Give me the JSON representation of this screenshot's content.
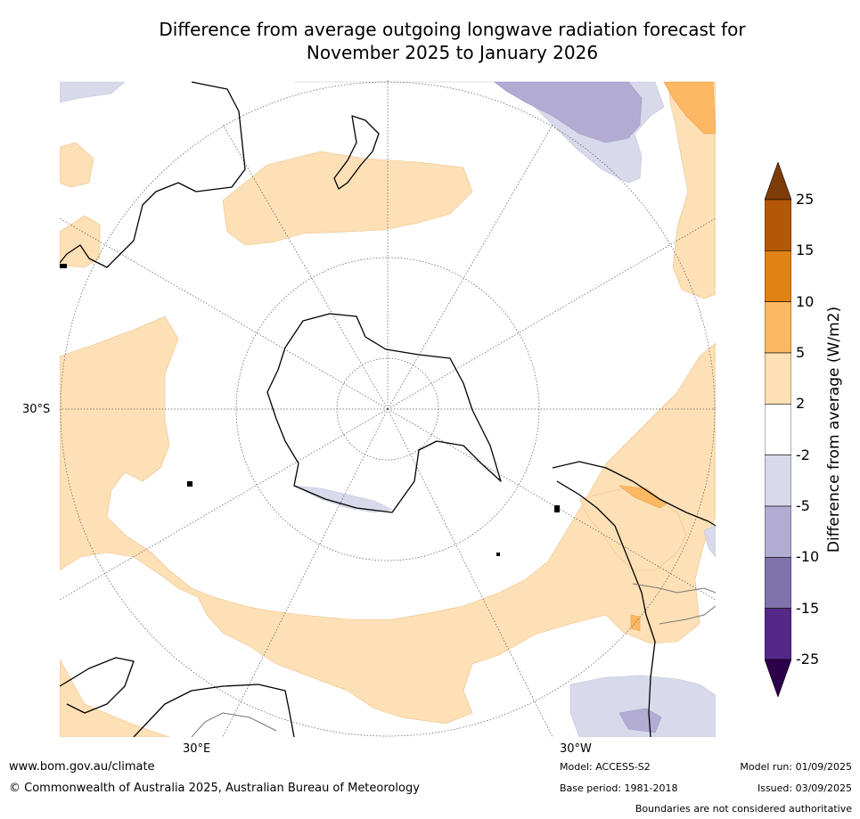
{
  "title": {
    "line1": "Difference from average outgoing longwave radiation forecast for",
    "line2": "November 2025 to January 2026"
  },
  "map": {
    "lat_label": "30°S",
    "lon_labels": [
      "30°E",
      "30°W"
    ]
  },
  "colorbar": {
    "title": "Difference from average (W/m2)",
    "tick_labels": [
      "25",
      "15",
      "10",
      "5",
      "2",
      "-2",
      "-5",
      "-10",
      "-15",
      "-25"
    ],
    "colors": [
      "#7f3b08",
      "#b35806",
      "#e08214",
      "#fdb863",
      "#fee0b6",
      "#ffffff",
      "#d8daeb",
      "#b2abd2",
      "#8073ac",
      "#542788",
      "#2d004b"
    ]
  },
  "footer": {
    "website": "www.bom.gov.au/climate",
    "copyright": "© Commonwealth of Australia 2025, Australian Bureau of Meteorology",
    "model": "Model: ACCESS-S2",
    "base_period": "Base period: 1981-2018",
    "model_run": "Model run: 01/09/2025",
    "issued": "Issued: 03/09/2025",
    "disclaimer": "Boundaries are not considered authoritative"
  }
}
